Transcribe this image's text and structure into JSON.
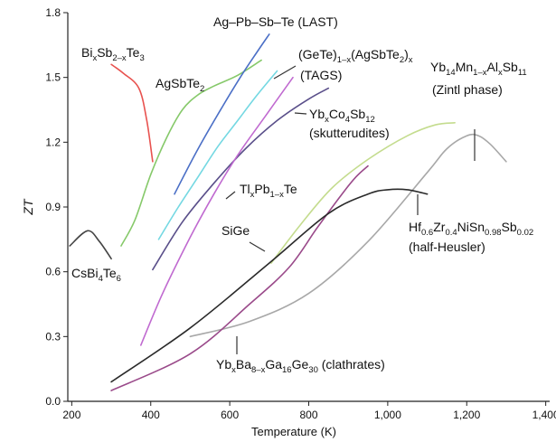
{
  "chart_data": {
    "type": "line",
    "title": "",
    "xlabel": "Temperature (K)",
    "ylabel": "ZT",
    "xlim": [
      190,
      1410
    ],
    "ylim": [
      0,
      1.8
    ],
    "grid": false,
    "legend": "none",
    "x_ticks": [
      200,
      400,
      600,
      800,
      1000,
      1200,
      1400
    ],
    "x_tick_labels": [
      "200",
      "400",
      "600",
      "800",
      "1,000",
      "1,200",
      "1,400"
    ],
    "y_ticks": [
      0,
      0.3,
      0.6,
      0.9,
      1.2,
      1.5,
      1.8
    ],
    "y_tick_labels": [
      "0.0",
      "0.3",
      "0.6",
      "0.9",
      "1.2",
      "1.5",
      "1.8"
    ],
    "series": [
      {
        "name": "CsBi4Te6",
        "color": "#444444",
        "x": [
          195,
          240,
          270,
          300
        ],
        "y": [
          0.72,
          0.79,
          0.74,
          0.66
        ]
      },
      {
        "name": "BixSb2-xTe3",
        "color": "#e8524f",
        "x": [
          300,
          330,
          370,
          390,
          405
        ],
        "y": [
          1.56,
          1.52,
          1.45,
          1.3,
          1.11
        ]
      },
      {
        "name": "AgSbTe2",
        "color": "#86c96a",
        "x": [
          325,
          360,
          400,
          440,
          480,
          520,
          560,
          620,
          680
        ],
        "y": [
          0.72,
          0.84,
          1.05,
          1.22,
          1.35,
          1.42,
          1.46,
          1.51,
          1.58
        ]
      },
      {
        "name": "Ag-Pb-Sb-Te (LAST)",
        "color": "#4b6fc6",
        "x": [
          460,
          520,
          580,
          630,
          670,
          700
        ],
        "y": [
          0.96,
          1.17,
          1.36,
          1.51,
          1.62,
          1.7
        ]
      },
      {
        "name": "(GeTe)1-x(AgSbTe2)x (TAGS)",
        "color": "#74d8e2",
        "x": [
          420,
          470,
          520,
          570,
          620,
          670,
          720
        ],
        "y": [
          0.75,
          0.9,
          1.04,
          1.18,
          1.3,
          1.42,
          1.53
        ]
      },
      {
        "name": "YbxCo4Sb12 (skutterudites)",
        "color": "#5a4f8a",
        "x": [
          405,
          480,
          560,
          640,
          720,
          800,
          850
        ],
        "y": [
          0.61,
          0.83,
          1.01,
          1.17,
          1.3,
          1.4,
          1.45
        ]
      },
      {
        "name": "TlxPb1-xTe",
        "color": "#c06ad0",
        "x": [
          375,
          430,
          500,
          560,
          620,
          690,
          760
        ],
        "y": [
          0.26,
          0.5,
          0.76,
          0.96,
          1.14,
          1.32,
          1.5
        ]
      },
      {
        "name": "SiGe",
        "color": "#c4dc8e",
        "x": [
          705,
          780,
          860,
          950,
          1050,
          1120,
          1170
        ],
        "y": [
          0.64,
          0.82,
          0.99,
          1.12,
          1.23,
          1.28,
          1.29
        ]
      },
      {
        "name": "Yb14Mn1-xAlxSb11 (Zintl phase)",
        "color": "#a8a8a8",
        "x": [
          500,
          650,
          800,
          950,
          1100,
          1150,
          1200,
          1230,
          1260,
          1300
        ],
        "y": [
          0.3,
          0.37,
          0.5,
          0.74,
          1.06,
          1.17,
          1.23,
          1.23,
          1.19,
          1.11
        ]
      },
      {
        "name": "YbxBa8-xGa16Ge30 (clathrates)",
        "color": "#9a4a8a",
        "x": [
          300,
          500,
          650,
          750,
          820,
          880,
          920,
          950
        ],
        "y": [
          0.05,
          0.22,
          0.45,
          0.62,
          0.8,
          0.95,
          1.04,
          1.09
        ]
      },
      {
        "name": "Hf0.6Zr0.4NiSn0.98Sb0.02 (half-Heusler)",
        "color": "#2a2a2a",
        "x": [
          300,
          500,
          700,
          850,
          950,
          1000,
          1050,
          1100
        ],
        "y": [
          0.09,
          0.34,
          0.64,
          0.87,
          0.96,
          0.98,
          0.98,
          0.96
        ]
      }
    ],
    "annotations": [
      {
        "text": "Ag–Pb–Sb–Te (LAST)"
      },
      {
        "text": "BixSb2–xTe3",
        "base": "Bi",
        "sub1": "x",
        "mid": "Sb",
        "sub2": "2–x",
        "tail": "Te",
        "sub3": "3"
      },
      {
        "text": "AgSbTe2",
        "base": "AgSbTe",
        "sub1": "2"
      },
      {
        "text": "(GeTe)1–x(AgSbTe2)x",
        "base": "(GeTe)",
        "sub1": "1–x",
        "mid": "(AgSbTe",
        "sub2": "2",
        "tail": ")",
        "sub3": "x"
      },
      {
        "text": "(TAGS)"
      },
      {
        "text": "YbxCo4Sb12",
        "base": "Yb",
        "sub1": "x",
        "mid": "Co",
        "sub2": "4",
        "tail": "Sb",
        "sub3": "12"
      },
      {
        "text": "(skutterudites)"
      },
      {
        "text": "Yb14Mn1–xAlxSb11",
        "p1": "Yb",
        "s1": "14",
        "p2": "Mn",
        "s2": "1–x",
        "p3": "Al",
        "s3": "x",
        "p4": "Sb",
        "s4": "11"
      },
      {
        "text": "(Zintl phase)"
      },
      {
        "text": "TlxPb1–xTe",
        "base": "Tl",
        "sub1": "x",
        "mid": "Pb",
        "sub2": "1–x",
        "tail": "Te"
      },
      {
        "text": "SiGe"
      },
      {
        "text": "Hf0.6Zr0.4NiSn0.98Sb0.02",
        "p1": "Hf",
        "s1": "0.6",
        "p2": "Zr",
        "s2": "0.4",
        "p3": "NiSn",
        "s3": "0.98",
        "p4": "Sb",
        "s4": "0.02"
      },
      {
        "text": "(half-Heusler)"
      },
      {
        "text": "CsBi4Te6",
        "base": "CsBi",
        "sub1": "4",
        "mid": "Te",
        "sub2": "6"
      },
      {
        "text": "YbxBa8–xGa16Ge30 (clathrates)",
        "p1": "Yb",
        "s1": "x",
        "p2": "Ba",
        "s2": "8–x",
        "p3": "Ga",
        "s3": "16",
        "p4": "Ge",
        "s4": "30",
        "p5": " (clathrates)"
      }
    ]
  }
}
